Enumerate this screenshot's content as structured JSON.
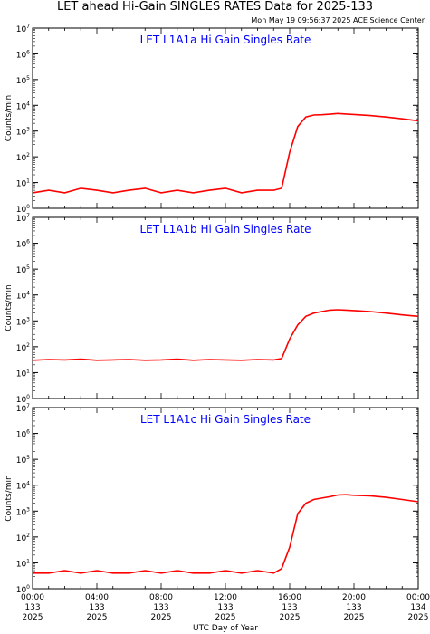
{
  "header": {
    "title": "LET ahead Hi-Gain SINGLES RATES Data for 2025-133",
    "timestamp": "Mon May 19 09:56:37 2025 ACE Science Center"
  },
  "colors": {
    "series": "#ff0000",
    "panel_title": "#0000ff",
    "axes": "#000000"
  },
  "chart_data": [
    {
      "type": "line",
      "title": "LET L1A1a Hi Gain Singles Rate",
      "ylabel": "Counts/min",
      "xlabel": "UTC Day of Year",
      "yscale": "log",
      "ylim": [
        1,
        10000000
      ],
      "xlim": [
        "2025-133 00:00",
        "2025-134 00:00"
      ],
      "grid": false,
      "series": [
        {
          "x": [
            "00:00",
            "01:00",
            "02:00",
            "03:00",
            "04:00",
            "05:00",
            "06:00",
            "07:00",
            "08:00",
            "09:00",
            "10:00",
            "11:00",
            "12:00",
            "13:00",
            "14:00",
            "15:00",
            "15:30",
            "16:00",
            "16:30",
            "17:00",
            "17:30",
            "18:00",
            "18:30",
            "19:00",
            "19:30",
            "20:00",
            "21:00",
            "22:00",
            "23:00",
            "24:00"
          ],
          "values": [
            4,
            5,
            4,
            6,
            5,
            4,
            5,
            6,
            4,
            5,
            4,
            5,
            6,
            4,
            5,
            5,
            6,
            150,
            1500,
            3500,
            4200,
            4300,
            4500,
            4800,
            4600,
            4400,
            4000,
            3500,
            3000,
            2500
          ]
        }
      ]
    },
    {
      "type": "line",
      "title": "LET L1A1b Hi Gain Singles Rate",
      "ylabel": "Counts/min",
      "xlabel": "UTC Day of Year",
      "yscale": "log",
      "ylim": [
        1,
        10000000
      ],
      "xlim": [
        "2025-133 00:00",
        "2025-134 00:00"
      ],
      "grid": false,
      "series": [
        {
          "x": [
            "00:00",
            "01:00",
            "02:00",
            "03:00",
            "04:00",
            "05:00",
            "06:00",
            "07:00",
            "08:00",
            "09:00",
            "10:00",
            "11:00",
            "12:00",
            "13:00",
            "14:00",
            "15:00",
            "15:30",
            "16:00",
            "16:30",
            "17:00",
            "17:30",
            "18:00",
            "18:30",
            "19:00",
            "19:30",
            "20:00",
            "21:00",
            "22:00",
            "23:00",
            "24:00"
          ],
          "values": [
            30,
            32,
            31,
            33,
            30,
            31,
            32,
            30,
            31,
            33,
            30,
            32,
            31,
            30,
            32,
            31,
            35,
            200,
            700,
            1500,
            2000,
            2300,
            2600,
            2700,
            2600,
            2500,
            2300,
            2000,
            1700,
            1500
          ]
        }
      ]
    },
    {
      "type": "line",
      "title": "LET L1A1c Hi Gain Singles Rate",
      "ylabel": "Counts/min",
      "xlabel": "UTC Day of Year",
      "yscale": "log",
      "ylim": [
        1,
        10000000
      ],
      "xlim": [
        "2025-133 00:00",
        "2025-134 00:00"
      ],
      "grid": false,
      "series": [
        {
          "x": [
            "00:00",
            "01:00",
            "02:00",
            "03:00",
            "04:00",
            "05:00",
            "06:00",
            "07:00",
            "08:00",
            "09:00",
            "10:00",
            "11:00",
            "12:00",
            "13:00",
            "14:00",
            "15:00",
            "15:30",
            "16:00",
            "16:30",
            "17:00",
            "17:30",
            "18:00",
            "18:30",
            "19:00",
            "19:30",
            "20:00",
            "21:00",
            "22:00",
            "23:00",
            "24:00"
          ],
          "values": [
            4,
            4,
            5,
            4,
            5,
            4,
            4,
            5,
            4,
            5,
            4,
            4,
            5,
            4,
            5,
            4,
            6,
            40,
            800,
            2000,
            2800,
            3200,
            3600,
            4200,
            4300,
            4100,
            3900,
            3400,
            2800,
            2300
          ]
        }
      ]
    }
  ],
  "xaxis": {
    "ticks": [
      {
        "time": "00:00",
        "doy": "133",
        "year": "2025"
      },
      {
        "time": "04:00",
        "doy": "133",
        "year": "2025"
      },
      {
        "time": "08:00",
        "doy": "133",
        "year": "2025"
      },
      {
        "time": "12:00",
        "doy": "133",
        "year": "2025"
      },
      {
        "time": "16:00",
        "doy": "133",
        "year": "2025"
      },
      {
        "time": "20:00",
        "doy": "133",
        "year": "2025"
      },
      {
        "time": "00:00",
        "doy": "134",
        "year": "2025"
      }
    ]
  }
}
